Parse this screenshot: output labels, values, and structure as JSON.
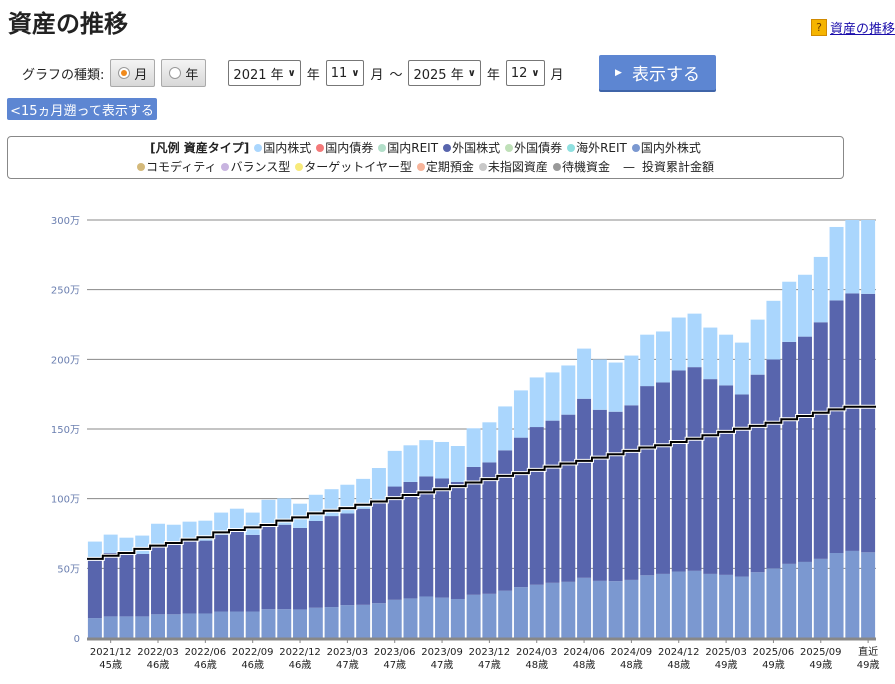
{
  "header": {
    "title": "資産の推移",
    "help_link": "資産の推移",
    "help_icon": "question-icon"
  },
  "controls": {
    "graph_type_label": "グラフの種類:",
    "radio_month": "月",
    "radio_year": "年",
    "selected": "月",
    "from_year": "2021 年",
    "from_month": "11",
    "to_year": "2025 年",
    "to_month": "12",
    "year_unit": "年",
    "month_unit": "月",
    "tilde": "～",
    "show_button": "表示する",
    "back_button": "<15ヵ月遡って表示する"
  },
  "legend": {
    "title": "[凡例 資産タイプ]",
    "items": [
      {
        "label": "国内株式",
        "color": "#aad6fd"
      },
      {
        "label": "国内債券",
        "color": "#f47a7a"
      },
      {
        "label": "国内REIT",
        "color": "#b2dfc9"
      },
      {
        "label": "外国株式",
        "color": "#5865ad"
      },
      {
        "label": "外国債券",
        "color": "#bfe0b8"
      },
      {
        "label": "海外REIT",
        "color": "#8fe0e0"
      },
      {
        "label": "国内外株式",
        "color": "#7b98d0"
      },
      {
        "label": "コモディティ",
        "color": "#d4b97a"
      },
      {
        "label": "バランス型",
        "color": "#c8b4e0"
      },
      {
        "label": "ターゲットイヤー型",
        "color": "#f8ea7a"
      },
      {
        "label": "定期預金",
        "color": "#f7b49a"
      },
      {
        "label": "未指図資産",
        "color": "#c8c8c8"
      },
      {
        "label": "待機資金",
        "color": "#999999"
      }
    ],
    "line_label": "投資累計金額"
  },
  "chart_data": {
    "type": "bar",
    "stacked": true,
    "grid": true,
    "ylim": [
      0,
      300
    ],
    "yticks": [
      "0",
      "50万",
      "100万",
      "150万",
      "200万",
      "250万",
      "300万"
    ],
    "categories": [
      "2021/11",
      "2021/12",
      "2022/01",
      "2022/02",
      "2022/03",
      "2022/04",
      "2022/05",
      "2022/06",
      "2022/07",
      "2022/08",
      "2022/09",
      "2022/10",
      "2022/11",
      "2022/12",
      "2023/01",
      "2023/02",
      "2023/03",
      "2023/04",
      "2023/05",
      "2023/06",
      "2023/07",
      "2023/08",
      "2023/09",
      "2023/10",
      "2023/11",
      "2023/12",
      "2024/01",
      "2024/02",
      "2024/03",
      "2024/04",
      "2024/05",
      "2024/06",
      "2024/07",
      "2024/08",
      "2024/09",
      "2024/10",
      "2024/11",
      "2024/12",
      "2025/01",
      "2025/02",
      "2025/03",
      "2025/04",
      "2025/05",
      "2025/06",
      "2025/07",
      "2025/08",
      "2025/09",
      "2025/10",
      "2025/11",
      "直近"
    ],
    "xtick_labels": [
      {
        "category": "2021/12",
        "label": "2021/12",
        "age": "45歳"
      },
      {
        "category": "2022/03",
        "label": "2022/03",
        "age": "46歳"
      },
      {
        "category": "2022/06",
        "label": "2022/06",
        "age": "46歳"
      },
      {
        "category": "2022/09",
        "label": "2022/09",
        "age": "46歳"
      },
      {
        "category": "2022/12",
        "label": "2022/12",
        "age": "46歳"
      },
      {
        "category": "2023/03",
        "label": "2023/03",
        "age": "47歳"
      },
      {
        "category": "2023/06",
        "label": "2023/06",
        "age": "47歳"
      },
      {
        "category": "2023/09",
        "label": "2023/09",
        "age": "47歳"
      },
      {
        "category": "2023/12",
        "label": "2023/12",
        "age": "47歳"
      },
      {
        "category": "2024/03",
        "label": "2024/03",
        "age": "48歳"
      },
      {
        "category": "2024/06",
        "label": "2024/06",
        "age": "48歳"
      },
      {
        "category": "2024/09",
        "label": "2024/09",
        "age": "48歳"
      },
      {
        "category": "2024/12",
        "label": "2024/12",
        "age": "48歳"
      },
      {
        "category": "2025/03",
        "label": "2025/03",
        "age": "49歳"
      },
      {
        "category": "2025/06",
        "label": "2025/06",
        "age": "49歳"
      },
      {
        "category": "2025/09",
        "label": "2025/09",
        "age": "49歳"
      },
      {
        "category": "直近",
        "label": "直近",
        "age": "49歳"
      }
    ],
    "series": [
      {
        "name": "国内外株式",
        "color": "#7b98d0",
        "values": [
          14.3,
          15.5,
          15.5,
          15.5,
          17,
          17,
          17.6,
          17.6,
          19,
          19,
          19,
          20.7,
          20.7,
          20.5,
          21.7,
          22.2,
          23.6,
          23.8,
          25,
          27.4,
          28.4,
          29.8,
          29,
          28,
          31,
          31.7,
          33.9,
          36.5,
          38.2,
          39.6,
          40.3,
          43.2,
          41,
          40.8,
          41.7,
          45,
          46,
          47.7,
          48.2,
          46,
          45.3,
          44.1,
          47.2,
          50,
          53.2,
          54.6,
          56.8,
          61,
          62.5,
          61.5
        ]
      },
      {
        "name": "外国株式",
        "color": "#5865ad",
        "values": [
          43.2,
          45.5,
          44.1,
          44.8,
          50.5,
          50.5,
          51.6,
          52.3,
          55,
          57.6,
          55,
          60.6,
          60.6,
          58.5,
          62.3,
          65.3,
          65.8,
          69,
          73,
          81.3,
          83.6,
          86.2,
          85.5,
          84,
          91.8,
          94.3,
          100.8,
          107.3,
          113.2,
          116.4,
          120,
          128.5,
          122.8,
          121.6,
          125.3,
          135.8,
          137.4,
          144.3,
          146.2,
          139.8,
          136,
          130.7,
          141.8,
          149.9,
          159.3,
          161.7,
          169.8,
          181.3,
          184.8,
          185.5
        ]
      },
      {
        "name": "国内株式",
        "color": "#aad6fd",
        "values": [
          11.7,
          13.2,
          12.4,
          13.2,
          14.5,
          13.8,
          14.3,
          14.3,
          16,
          16.2,
          16,
          17.9,
          18.9,
          17.4,
          18.8,
          19.3,
          20.6,
          21.4,
          24,
          25.6,
          26.3,
          26,
          26.2,
          25.8,
          27.7,
          28.8,
          31.5,
          33.9,
          35.6,
          34.6,
          35.3,
          36,
          36.1,
          35.3,
          35.7,
          36.9,
          36.6,
          38,
          38.4,
          37,
          36.4,
          37.2,
          39.5,
          42.1,
          43.2,
          44.4,
          46.9,
          52.7,
          52.7,
          53
        ]
      }
    ],
    "line": {
      "name": "投資累計金額",
      "color": "#000000",
      "values": [
        56.8,
        59,
        61,
        64,
        66.3,
        68.2,
        70.6,
        72.3,
        75.8,
        77.5,
        79.4,
        81.1,
        84.2,
        86.6,
        89.4,
        91.3,
        93.2,
        95.6,
        98,
        100.4,
        102.6,
        104.5,
        106.8,
        109,
        111.6,
        114,
        116.4,
        118.3,
        120.7,
        123,
        125.2,
        127.1,
        129.5,
        131.9,
        134.3,
        136.7,
        138.3,
        140.7,
        143,
        145.5,
        147.9,
        150.2,
        152.2,
        154.5,
        157,
        159.3,
        161.7,
        164.1,
        166,
        166
      ]
    }
  }
}
